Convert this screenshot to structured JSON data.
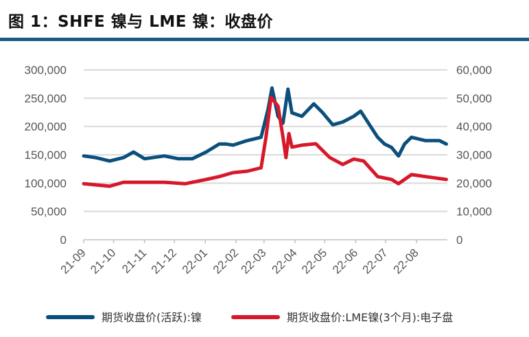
{
  "title": "图 1：SHFE 镍与 LME 镍：收盘价",
  "colors": {
    "title_rule": "#1b5a85",
    "shfe": "#0b4f7c",
    "lme": "#d7182a",
    "grid": "#d9d9d9"
  },
  "chart_data": {
    "type": "line",
    "title": "",
    "x_tick_labels": [
      "21-09",
      "21-10",
      "21-11",
      "21-12",
      "22-01",
      "22-02",
      "22-03",
      "22-04",
      "22-05",
      "22-06",
      "22-07",
      "22-08"
    ],
    "xlim": [
      "2021-09-01",
      "2022-09-01"
    ],
    "y_left": {
      "ylim": [
        0,
        300000
      ],
      "tick_labels": [
        "0",
        "50,000",
        "100,000",
        "150,000",
        "200,000",
        "250,000",
        "300,000"
      ]
    },
    "y_right": {
      "ylim": [
        0,
        60000
      ],
      "tick_labels": [
        "0",
        "10,000",
        "20,000",
        "30,000",
        "40,000",
        "50,000",
        "60,000"
      ]
    },
    "grid": true,
    "legend_placement": "bottom",
    "series": [
      {
        "name": "期货收盘价(活跃):镍",
        "axis": "left",
        "color": "#0b4f7c",
        "points": [
          [
            "2021-09-01",
            148000
          ],
          [
            "2021-09-13",
            145000
          ],
          [
            "2021-09-27",
            139000
          ],
          [
            "2021-10-11",
            145000
          ],
          [
            "2021-10-21",
            155000
          ],
          [
            "2021-11-01",
            143000
          ],
          [
            "2021-11-21",
            148000
          ],
          [
            "2021-12-05",
            143000
          ],
          [
            "2021-12-19",
            143000
          ],
          [
            "2022-01-02",
            155000
          ],
          [
            "2022-01-15",
            169000
          ],
          [
            "2022-01-22",
            169000
          ],
          [
            "2022-01-29",
            167000
          ],
          [
            "2022-02-12",
            175000
          ],
          [
            "2022-02-26",
            181000
          ],
          [
            "2022-03-05",
            230000
          ],
          [
            "2022-03-09",
            268000
          ],
          [
            "2022-03-15",
            218000
          ],
          [
            "2022-03-20",
            206000
          ],
          [
            "2022-03-25",
            266000
          ],
          [
            "2022-03-29",
            224000
          ],
          [
            "2022-04-08",
            218000
          ],
          [
            "2022-04-20",
            240000
          ],
          [
            "2022-04-29",
            224000
          ],
          [
            "2022-05-09",
            203000
          ],
          [
            "2022-05-19",
            208000
          ],
          [
            "2022-05-30",
            218000
          ],
          [
            "2022-06-06",
            227000
          ],
          [
            "2022-06-16",
            200000
          ],
          [
            "2022-06-23",
            181000
          ],
          [
            "2022-06-30",
            169000
          ],
          [
            "2022-07-07",
            163000
          ],
          [
            "2022-07-14",
            148000
          ],
          [
            "2022-07-20",
            169000
          ],
          [
            "2022-07-27",
            181000
          ],
          [
            "2022-08-10",
            175000
          ],
          [
            "2022-08-24",
            175000
          ],
          [
            "2022-08-31",
            169000
          ]
        ]
      },
      {
        "name": "期货收盘价:LME镍(3个月):电子盘",
        "axis": "right",
        "color": "#d7182a",
        "points": [
          [
            "2021-09-01",
            19800
          ],
          [
            "2021-09-27",
            18900
          ],
          [
            "2021-10-11",
            20300
          ],
          [
            "2021-10-25",
            20300
          ],
          [
            "2021-11-21",
            20300
          ],
          [
            "2021-12-12",
            19800
          ],
          [
            "2022-01-02",
            21300
          ],
          [
            "2022-01-15",
            22300
          ],
          [
            "2022-01-29",
            23700
          ],
          [
            "2022-02-12",
            24200
          ],
          [
            "2022-02-26",
            25400
          ],
          [
            "2022-03-03",
            36300
          ],
          [
            "2022-03-08",
            50300
          ],
          [
            "2022-03-15",
            47200
          ],
          [
            "2022-03-20",
            36300
          ],
          [
            "2022-03-23",
            29000
          ],
          [
            "2022-03-26",
            37500
          ],
          [
            "2022-03-29",
            32700
          ],
          [
            "2022-04-08",
            33400
          ],
          [
            "2022-04-22",
            33900
          ],
          [
            "2022-05-06",
            29000
          ],
          [
            "2022-05-19",
            26600
          ],
          [
            "2022-05-30",
            28500
          ],
          [
            "2022-06-09",
            27800
          ],
          [
            "2022-06-23",
            22300
          ],
          [
            "2022-07-07",
            21300
          ],
          [
            "2022-07-14",
            19800
          ],
          [
            "2022-07-27",
            23000
          ],
          [
            "2022-08-10",
            22300
          ],
          [
            "2022-08-31",
            21300
          ]
        ]
      }
    ]
  }
}
